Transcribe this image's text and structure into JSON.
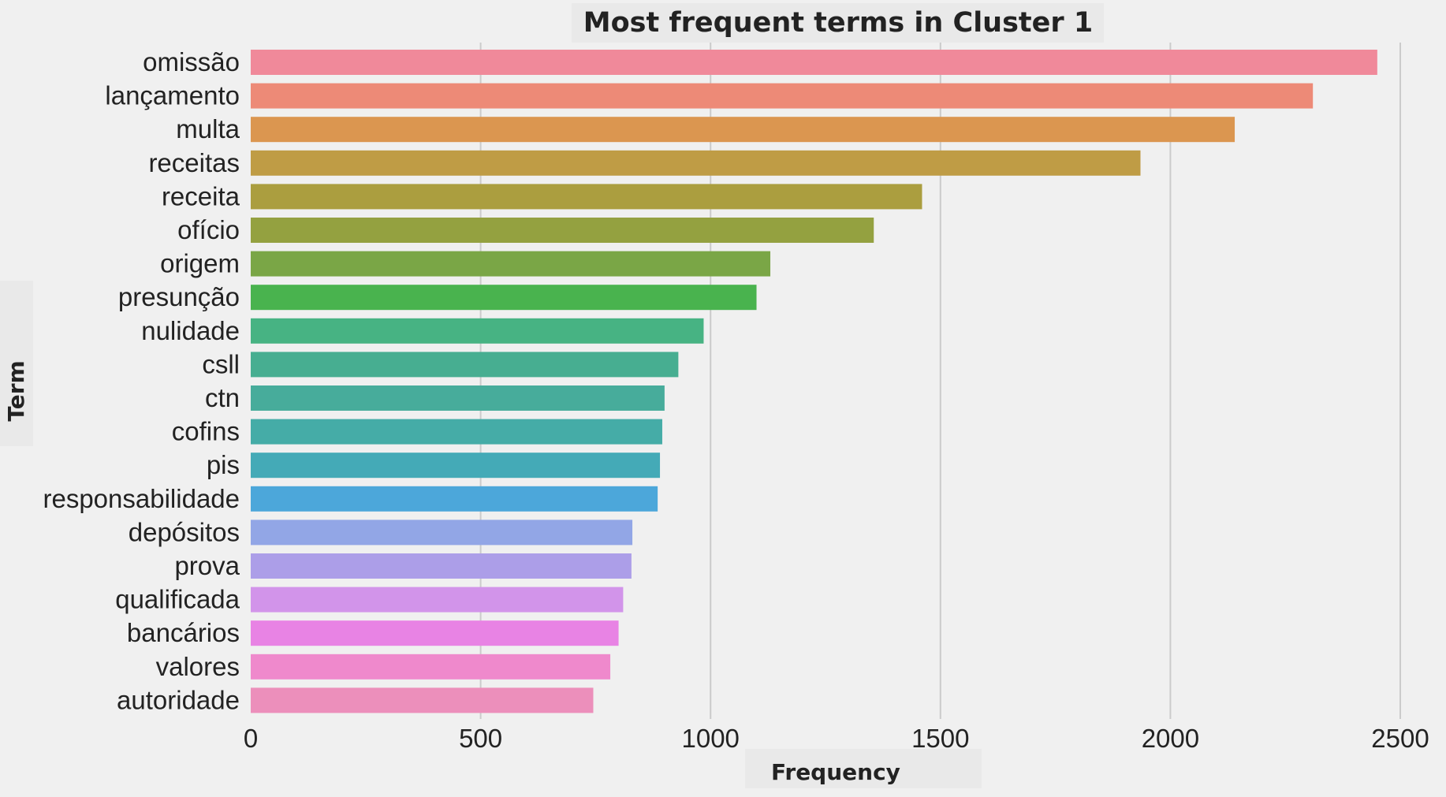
{
  "chart_data": {
    "type": "bar",
    "orientation": "horizontal",
    "title": "Most frequent terms in Cluster 1",
    "xlabel": "Frequency",
    "ylabel": "Term",
    "xlim": [
      0,
      2500
    ],
    "xticks": [
      0,
      500,
      1000,
      1500,
      2000,
      2500
    ],
    "grid": true,
    "legend": "none",
    "categories": [
      "omissão",
      "lançamento",
      "multa",
      "receitas",
      "receita",
      "ofício",
      "origem",
      "presunção",
      "nulidade",
      "csll",
      "ctn",
      "cofins",
      "pis",
      "responsabilidade",
      "depósitos",
      "prova",
      "qualificada",
      "bancários",
      "valores",
      "autoridade"
    ],
    "values": [
      2450,
      2310,
      2140,
      1935,
      1460,
      1355,
      1130,
      1100,
      985,
      930,
      900,
      895,
      890,
      885,
      830,
      828,
      810,
      800,
      782,
      745
    ],
    "colors": [
      "#f0899a",
      "#ed8a77",
      "#db9650",
      "#bf9c45",
      "#ab9e3f",
      "#94a140",
      "#7aa646",
      "#49b34e",
      "#47b383",
      "#47ae91",
      "#47ac9b",
      "#45aca7",
      "#44aab7",
      "#4ca7da",
      "#92a6e6",
      "#ac9ee8",
      "#d294ea",
      "#e883e4",
      "#ef89cc",
      "#ec8fbb"
    ]
  }
}
